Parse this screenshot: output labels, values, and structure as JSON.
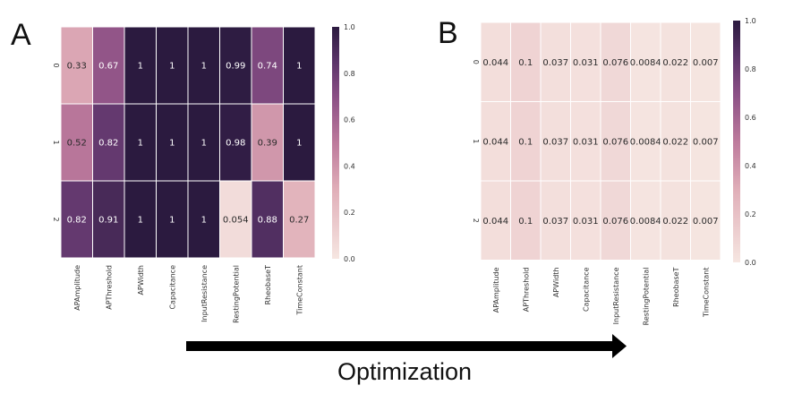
{
  "figure": {
    "caption": "Optimization"
  },
  "colormap": {
    "low": "#f6e6e1",
    "mid": "#d9a2b0",
    "high": "#2b1a3f"
  },
  "chart_data": [
    {
      "type": "heatmap",
      "panel": "A",
      "title": "",
      "columns": [
        "APAmplitude",
        "APThreshold",
        "APWidth",
        "Capacitance",
        "InputResistance",
        "RestingPotential",
        "RheobaseT",
        "TimeConstant"
      ],
      "rows": [
        "0",
        "1",
        "2"
      ],
      "values": [
        [
          0.33,
          0.67,
          1,
          1,
          1,
          0.99,
          0.74,
          1
        ],
        [
          0.52,
          0.82,
          1,
          1,
          1,
          0.98,
          0.39,
          1
        ],
        [
          0.82,
          0.91,
          1,
          1,
          1,
          0.054,
          0.88,
          0.27
        ]
      ],
      "value_labels": [
        [
          "0.33",
          "0.67",
          "1",
          "1",
          "1",
          "0.99",
          "0.74",
          "1"
        ],
        [
          "0.52",
          "0.82",
          "1",
          "1",
          "1",
          "0.98",
          "0.39",
          "1"
        ],
        [
          "0.82",
          "0.91",
          "1",
          "1",
          "1",
          "0.054",
          "0.88",
          "0.27"
        ]
      ],
      "colorbar": {
        "range": [
          0.0,
          1.0
        ],
        "ticks": [
          "0.0",
          "0.2",
          "0.4",
          "0.6",
          "0.8",
          "1.0"
        ]
      }
    },
    {
      "type": "heatmap",
      "panel": "B",
      "title": "",
      "columns": [
        "APAmplitude",
        "APThreshold",
        "APWidth",
        "Capacitance",
        "InputResistance",
        "RestingPotential",
        "RheobaseT",
        "TimeConstant"
      ],
      "rows": [
        "0",
        "1",
        "2"
      ],
      "values": [
        [
          0.044,
          0.1,
          0.037,
          0.031,
          0.076,
          0.0084,
          0.022,
          0.007
        ],
        [
          0.044,
          0.1,
          0.037,
          0.031,
          0.076,
          0.0084,
          0.022,
          0.007
        ],
        [
          0.044,
          0.1,
          0.037,
          0.031,
          0.076,
          0.0084,
          0.022,
          0.007
        ]
      ],
      "value_labels": [
        [
          "0.044",
          "0.1",
          "0.037",
          "0.031",
          "0.076",
          "0.0084",
          "0.022",
          "0.007"
        ],
        [
          "0.044",
          "0.1",
          "0.037",
          "0.031",
          "0.076",
          "0.0084",
          "0.022",
          "0.007"
        ],
        [
          "0.044",
          "0.1",
          "0.037",
          "0.031",
          "0.076",
          "0.0084",
          "0.022",
          "0.007"
        ]
      ],
      "colorbar": {
        "range": [
          0.0,
          1.0
        ],
        "ticks": [
          "0.0",
          "0.2",
          "0.4",
          "0.6",
          "0.8",
          "1.0"
        ]
      }
    }
  ]
}
